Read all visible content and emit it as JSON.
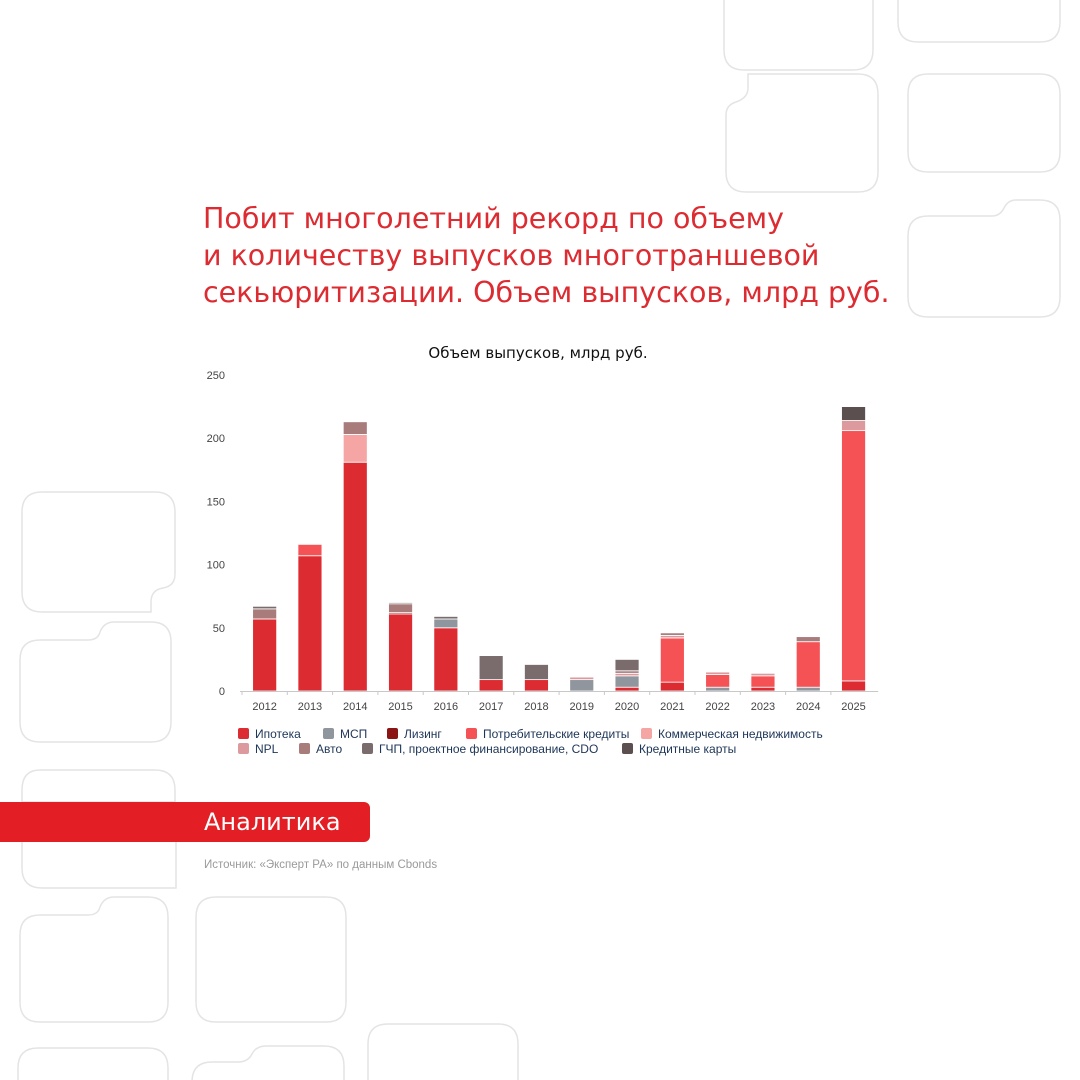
{
  "headline": {
    "line1": "Побит многолетний рекорд по объему",
    "line2": "и количеству выпусков многотраншевой",
    "line3": "секьюритизации. Объем выпусков, млрд руб."
  },
  "badge": {
    "label": "Аналитика"
  },
  "source": {
    "text": "Источник: «Эксперт РА» по данным Cbonds"
  },
  "chart_data": {
    "type": "bar",
    "stacked": true,
    "title": "Объем выпусков, млрд руб.",
    "xlabel": "",
    "ylabel": "",
    "ylim": [
      0,
      250
    ],
    "yticks": [
      0,
      50,
      100,
      150,
      200,
      250
    ],
    "grid": false,
    "legend_position": "bottom",
    "categories": [
      "2012",
      "2013",
      "2014",
      "2015",
      "2016",
      "2017",
      "2018",
      "2019",
      "2020",
      "2021",
      "2022",
      "2023",
      "2024",
      "2025"
    ],
    "series": [
      {
        "name": "Ипотека",
        "color": "#dc2b31",
        "values": [
          57,
          107,
          181,
          61,
          50,
          9,
          9,
          0,
          3,
          7,
          0,
          3,
          0,
          8
        ]
      },
      {
        "name": "МСП",
        "color": "#8f969e",
        "values": [
          0,
          0,
          0,
          0,
          7,
          0,
          0,
          9,
          9,
          0,
          3,
          0,
          3,
          0
        ]
      },
      {
        "name": "Лизинг",
        "color": "#8b1414",
        "values": [
          0,
          0,
          0,
          1,
          0,
          0,
          0,
          0,
          0,
          0,
          0,
          0,
          0,
          0
        ]
      },
      {
        "name": "Потребительские кредиты",
        "color": "#f55256",
        "values": [
          0,
          9,
          0,
          0,
          0,
          0,
          0,
          0,
          0,
          35,
          10,
          9,
          36,
          198
        ]
      },
      {
        "name": "Коммерческая недвижимость",
        "color": "#f6a5a5",
        "values": [
          0,
          0,
          22,
          0,
          0,
          0,
          0,
          0,
          0,
          0,
          0,
          0,
          0,
          0
        ]
      },
      {
        "name": "NPL",
        "color": "#dc9a9e",
        "values": [
          0,
          0,
          0,
          0,
          0,
          0,
          0,
          2,
          2,
          2,
          2,
          2,
          0,
          8
        ]
      },
      {
        "name": "Авто",
        "color": "#a97c7c",
        "values": [
          8,
          0,
          10,
          7,
          0,
          0,
          0,
          0,
          2,
          2,
          0,
          0,
          4,
          0
        ]
      },
      {
        "name": "ГЧП, проектное финансирование, CDO",
        "color": "#7a6c6c",
        "values": [
          2,
          0,
          0,
          1,
          2,
          19,
          12,
          0,
          9,
          0,
          0,
          0,
          0,
          0
        ]
      },
      {
        "name": "Кредитные карты",
        "color": "#5b4f4f",
        "values": [
          0,
          0,
          0,
          0,
          0,
          0,
          0,
          0,
          0,
          0,
          0,
          0,
          0,
          11
        ]
      }
    ]
  }
}
